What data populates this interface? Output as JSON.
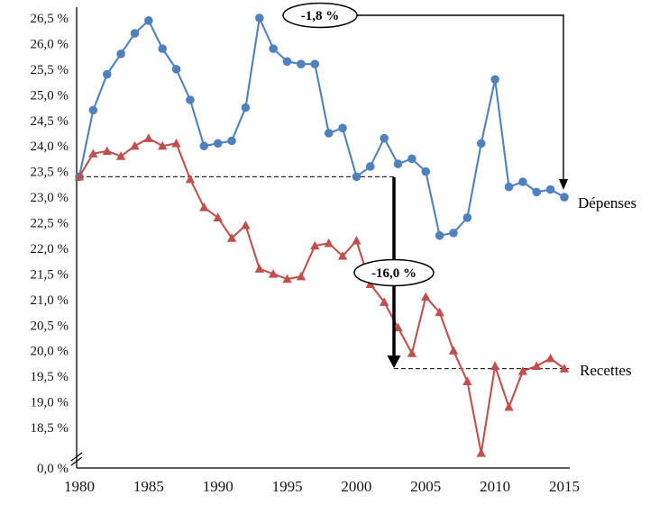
{
  "chart_data": {
    "type": "line",
    "title": "",
    "xlabel": "",
    "ylabel": "",
    "unit": "%",
    "x": [
      1980,
      1981,
      1982,
      1983,
      1984,
      1985,
      1986,
      1987,
      1988,
      1989,
      1990,
      1991,
      1992,
      1993,
      1994,
      1995,
      1996,
      1997,
      1998,
      1999,
      2000,
      2001,
      2002,
      2003,
      2004,
      2005,
      2006,
      2007,
      2008,
      2009,
      2010,
      2011,
      2012,
      2013,
      2014,
      2015
    ],
    "series": [
      {
        "name": "Dépenses",
        "color": "#4f81bd",
        "marker": "circle",
        "values": [
          23.4,
          24.7,
          25.4,
          25.8,
          26.2,
          26.45,
          25.9,
          25.5,
          24.9,
          24.0,
          24.05,
          24.1,
          24.75,
          26.5,
          25.9,
          25.65,
          25.6,
          25.6,
          24.25,
          24.35,
          23.4,
          23.6,
          24.15,
          23.65,
          23.75,
          23.5,
          22.25,
          22.3,
          22.6,
          24.05,
          25.3,
          23.2,
          23.3,
          23.1,
          23.15,
          23.0
        ]
      },
      {
        "name": "Recettes",
        "color": "#c0504d",
        "marker": "triangle-up",
        "values": [
          23.4,
          23.85,
          23.9,
          23.8,
          24.0,
          24.15,
          24.0,
          24.05,
          23.35,
          22.8,
          22.6,
          22.2,
          22.45,
          21.6,
          21.5,
          21.4,
          21.45,
          22.05,
          22.1,
          21.85,
          22.15,
          21.3,
          20.95,
          20.45,
          19.95,
          21.05,
          20.75,
          20.0,
          19.4,
          18.0,
          19.7,
          18.9,
          19.6,
          19.7,
          19.85,
          19.65
        ]
      }
    ],
    "x_axis": {
      "ticks": [
        1980,
        1985,
        1990,
        1995,
        2000,
        2005,
        2010,
        2015
      ],
      "tick_labels": [
        "1980",
        "1985",
        "1990",
        "1995",
        "2000",
        "2005",
        "2010",
        "2015"
      ]
    },
    "y_axis": {
      "min": 18.5,
      "max": 26.5,
      "step": 0.5,
      "has_axis_break": true,
      "tick_values": [
        26.5,
        26.0,
        25.5,
        25.0,
        24.5,
        24.0,
        23.5,
        23.0,
        22.5,
        22.0,
        21.5,
        21.0,
        20.5,
        20.0,
        19.5,
        19.0,
        18.5
      ],
      "tick_labels": [
        "26,5 %",
        "26,0 %",
        "25,5 %",
        "25,0 %",
        "24,5 %",
        "24,0 %",
        "23,5 %",
        "23,0 %",
        "22,5 %",
        "22,0 %",
        "21,5 %",
        "21,0 %",
        "20,5 %",
        "20,0 %",
        "19,5 %",
        "19,0 %",
        "18,5 %"
      ],
      "axis_break": {
        "label": "0,0 %"
      }
    },
    "reference_lines": [
      {
        "value": 23.4,
        "from_year": 1980,
        "to_year": 2002.7,
        "style": "dashed"
      },
      {
        "value": 19.65,
        "from_year": 2002.7,
        "to_year": 2015.35,
        "style": "dashed"
      }
    ],
    "annotations": [
      {
        "label": "-1,8 %",
        "applies_to": "Dépenses",
        "from_value": 23.4,
        "to_value": 23.0
      },
      {
        "label": "-16,0 %",
        "applies_to": "Recettes",
        "from_value": 23.4,
        "to_value": 19.65
      }
    ],
    "end_labels": {
      "depenses": "Dépenses",
      "recettes": "Recettes"
    },
    "legend_position": "end-of-line",
    "grid": false
  }
}
